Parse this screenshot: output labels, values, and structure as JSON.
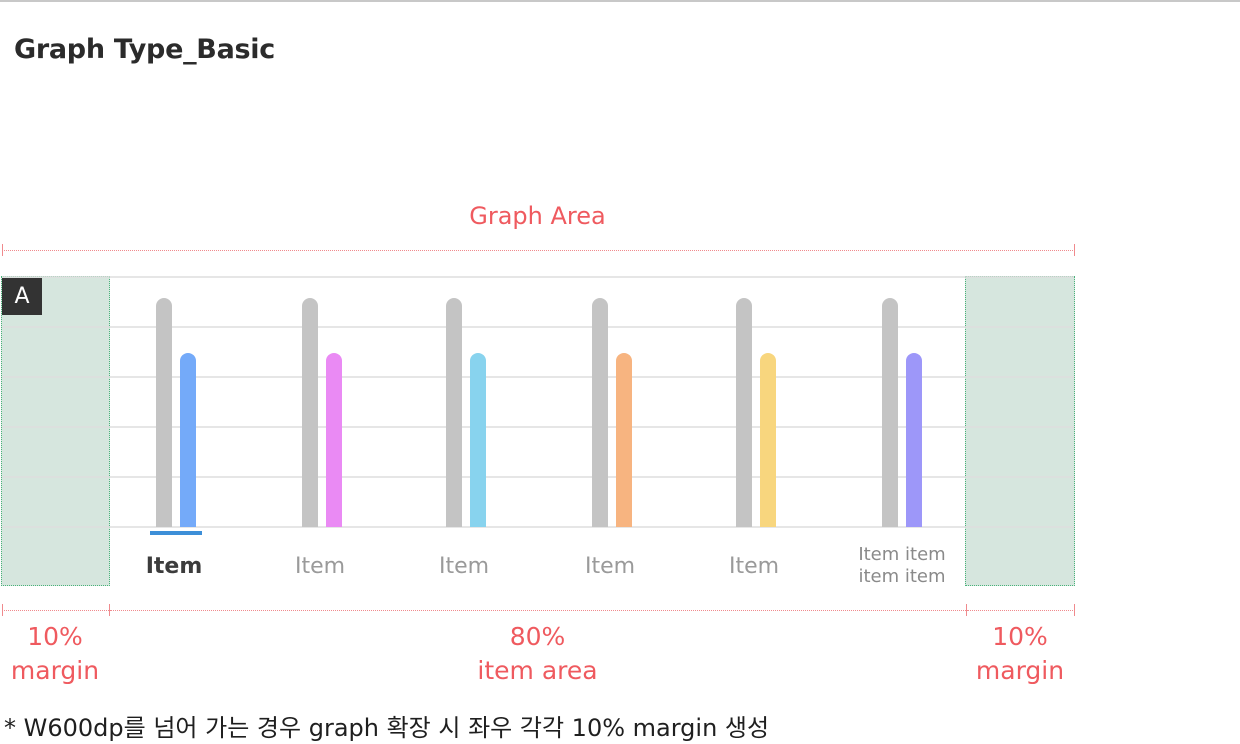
{
  "page": {
    "title": "Graph Type_Basic",
    "badge": "A",
    "area_title": "Graph Area",
    "left_margin_pct": "10%",
    "left_margin_word": "margin",
    "item_area_pct": "80%",
    "item_area_word": "item area",
    "right_margin_pct": "10%",
    "right_margin_word": "margin",
    "footnote": "* W600dp를 넘어 가는 경우 graph 확장 시 좌우 각각 10% margin 생성"
  },
  "colors": {
    "accent_red": "#ef5a5f",
    "reference_bar": "#c4c4c4",
    "selected_underline": "#3d8fd8"
  },
  "chart_data": {
    "type": "bar",
    "categories": [
      {
        "label": "Item",
        "selected": true
      },
      {
        "label": "Item",
        "selected": false
      },
      {
        "label": "Item",
        "selected": false
      },
      {
        "label": "Item",
        "selected": false
      },
      {
        "label": "Item",
        "selected": false
      },
      {
        "label": "Item item item item",
        "selected": false
      }
    ],
    "series": [
      {
        "role": "reference",
        "color": "#c4c4c4",
        "values": [
          100,
          100,
          100,
          100,
          100,
          100
        ]
      },
      {
        "role": "value",
        "colors": [
          "#74aaf9",
          "#ea8af4",
          "#88d3ee",
          "#f7b480",
          "#f8d67e",
          "#9d97f9"
        ],
        "values": [
          76,
          76,
          76,
          76,
          76,
          76
        ]
      }
    ],
    "ylim": [
      0,
      100
    ],
    "gridlines": 5,
    "grid": true
  }
}
